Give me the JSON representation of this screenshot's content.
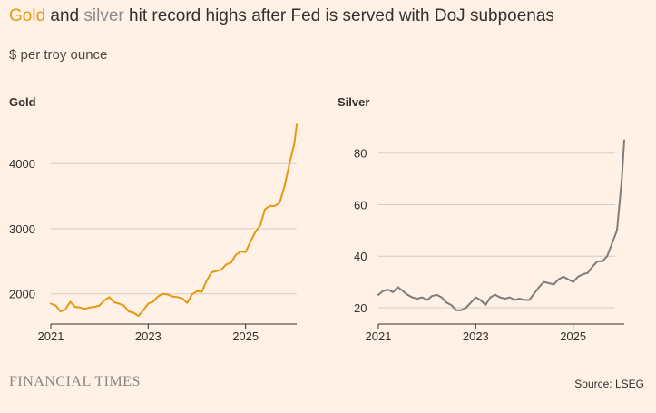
{
  "headline": {
    "word_gold": "Gold",
    "text_and": " and ",
    "word_silver": "silver",
    "text_rest": " hit record highs after Fed is served with DoJ subpoenas"
  },
  "subtitle": "$ per troy ounce",
  "footer": {
    "brand": "FINANCIAL TIMES",
    "source": "Source: LSEG"
  },
  "colors": {
    "gold": "#E8980E",
    "silver": "#7D7D7D",
    "grid": "#D9CEC4",
    "axis": "#33302E",
    "background": "#FFF1E5"
  },
  "chart_data": [
    {
      "type": "line",
      "title": "Gold",
      "ylabel": "$ per troy ounce",
      "xlim": [
        2021.0,
        2026.05
      ],
      "ylim": [
        1550,
        4700
      ],
      "yticks": [
        2000,
        3000,
        4000
      ],
      "xticks": [
        2021,
        2023,
        2025
      ],
      "xtick_labels": [
        "2021",
        "2023",
        "2025"
      ],
      "series": [
        {
          "name": "Gold",
          "color": "#E8980E",
          "x": [
            2021.0,
            2021.1,
            2021.2,
            2021.3,
            2021.4,
            2021.5,
            2021.6,
            2021.7,
            2021.8,
            2021.9,
            2022.0,
            2022.1,
            2022.2,
            2022.3,
            2022.4,
            2022.5,
            2022.6,
            2022.7,
            2022.8,
            2022.9,
            2023.0,
            2023.1,
            2023.2,
            2023.3,
            2023.4,
            2023.5,
            2023.6,
            2023.7,
            2023.8,
            2023.9,
            2024.0,
            2024.1,
            2024.2,
            2024.3,
            2024.4,
            2024.5,
            2024.6,
            2024.7,
            2024.8,
            2024.9,
            2025.0,
            2025.1,
            2025.2,
            2025.3,
            2025.4,
            2025.5,
            2025.6,
            2025.7,
            2025.8,
            2025.9,
            2026.0,
            2026.05
          ],
          "y": [
            1850,
            1820,
            1730,
            1760,
            1880,
            1800,
            1790,
            1770,
            1790,
            1800,
            1820,
            1900,
            1950,
            1870,
            1850,
            1820,
            1730,
            1710,
            1660,
            1750,
            1850,
            1880,
            1960,
            2000,
            1990,
            1960,
            1950,
            1930,
            1860,
            1990,
            2040,
            2030,
            2200,
            2330,
            2350,
            2370,
            2450,
            2480,
            2600,
            2650,
            2640,
            2800,
            2950,
            3050,
            3300,
            3350,
            3350,
            3400,
            3650,
            4000,
            4300,
            4600
          ]
        }
      ]
    },
    {
      "type": "line",
      "title": "Silver",
      "ylabel": "$ per troy ounce",
      "xlim": [
        2021.0,
        2026.05
      ],
      "ylim": [
        14,
        88
      ],
      "yticks": [
        20,
        40,
        60,
        80
      ],
      "xticks": [
        2021,
        2023,
        2025
      ],
      "xtick_labels": [
        "2021",
        "2023",
        "2025"
      ],
      "series": [
        {
          "name": "Silver",
          "color": "#7D7D7D",
          "x": [
            2021.0,
            2021.1,
            2021.2,
            2021.3,
            2021.4,
            2021.5,
            2021.6,
            2021.7,
            2021.8,
            2021.9,
            2022.0,
            2022.1,
            2022.2,
            2022.3,
            2022.4,
            2022.5,
            2022.6,
            2022.7,
            2022.8,
            2022.9,
            2023.0,
            2023.1,
            2023.2,
            2023.3,
            2023.4,
            2023.5,
            2023.6,
            2023.7,
            2023.8,
            2023.9,
            2024.0,
            2024.1,
            2024.2,
            2024.3,
            2024.4,
            2024.5,
            2024.6,
            2024.7,
            2024.8,
            2024.9,
            2025.0,
            2025.1,
            2025.2,
            2025.3,
            2025.4,
            2025.5,
            2025.6,
            2025.7,
            2025.8,
            2025.9,
            2026.0,
            2026.05
          ],
          "y": [
            25,
            26.5,
            27,
            26,
            28,
            26.5,
            25,
            24,
            23.5,
            24,
            23,
            24.5,
            25,
            24,
            22,
            21,
            19,
            19,
            20,
            22,
            24,
            23,
            21,
            24,
            25,
            24,
            23.5,
            24,
            23,
            23.5,
            23,
            23,
            25.5,
            28,
            30,
            29.5,
            29,
            31,
            32,
            31,
            30,
            32,
            33,
            33.5,
            36,
            38,
            38,
            40,
            45,
            50,
            70,
            85
          ]
        }
      ]
    }
  ]
}
